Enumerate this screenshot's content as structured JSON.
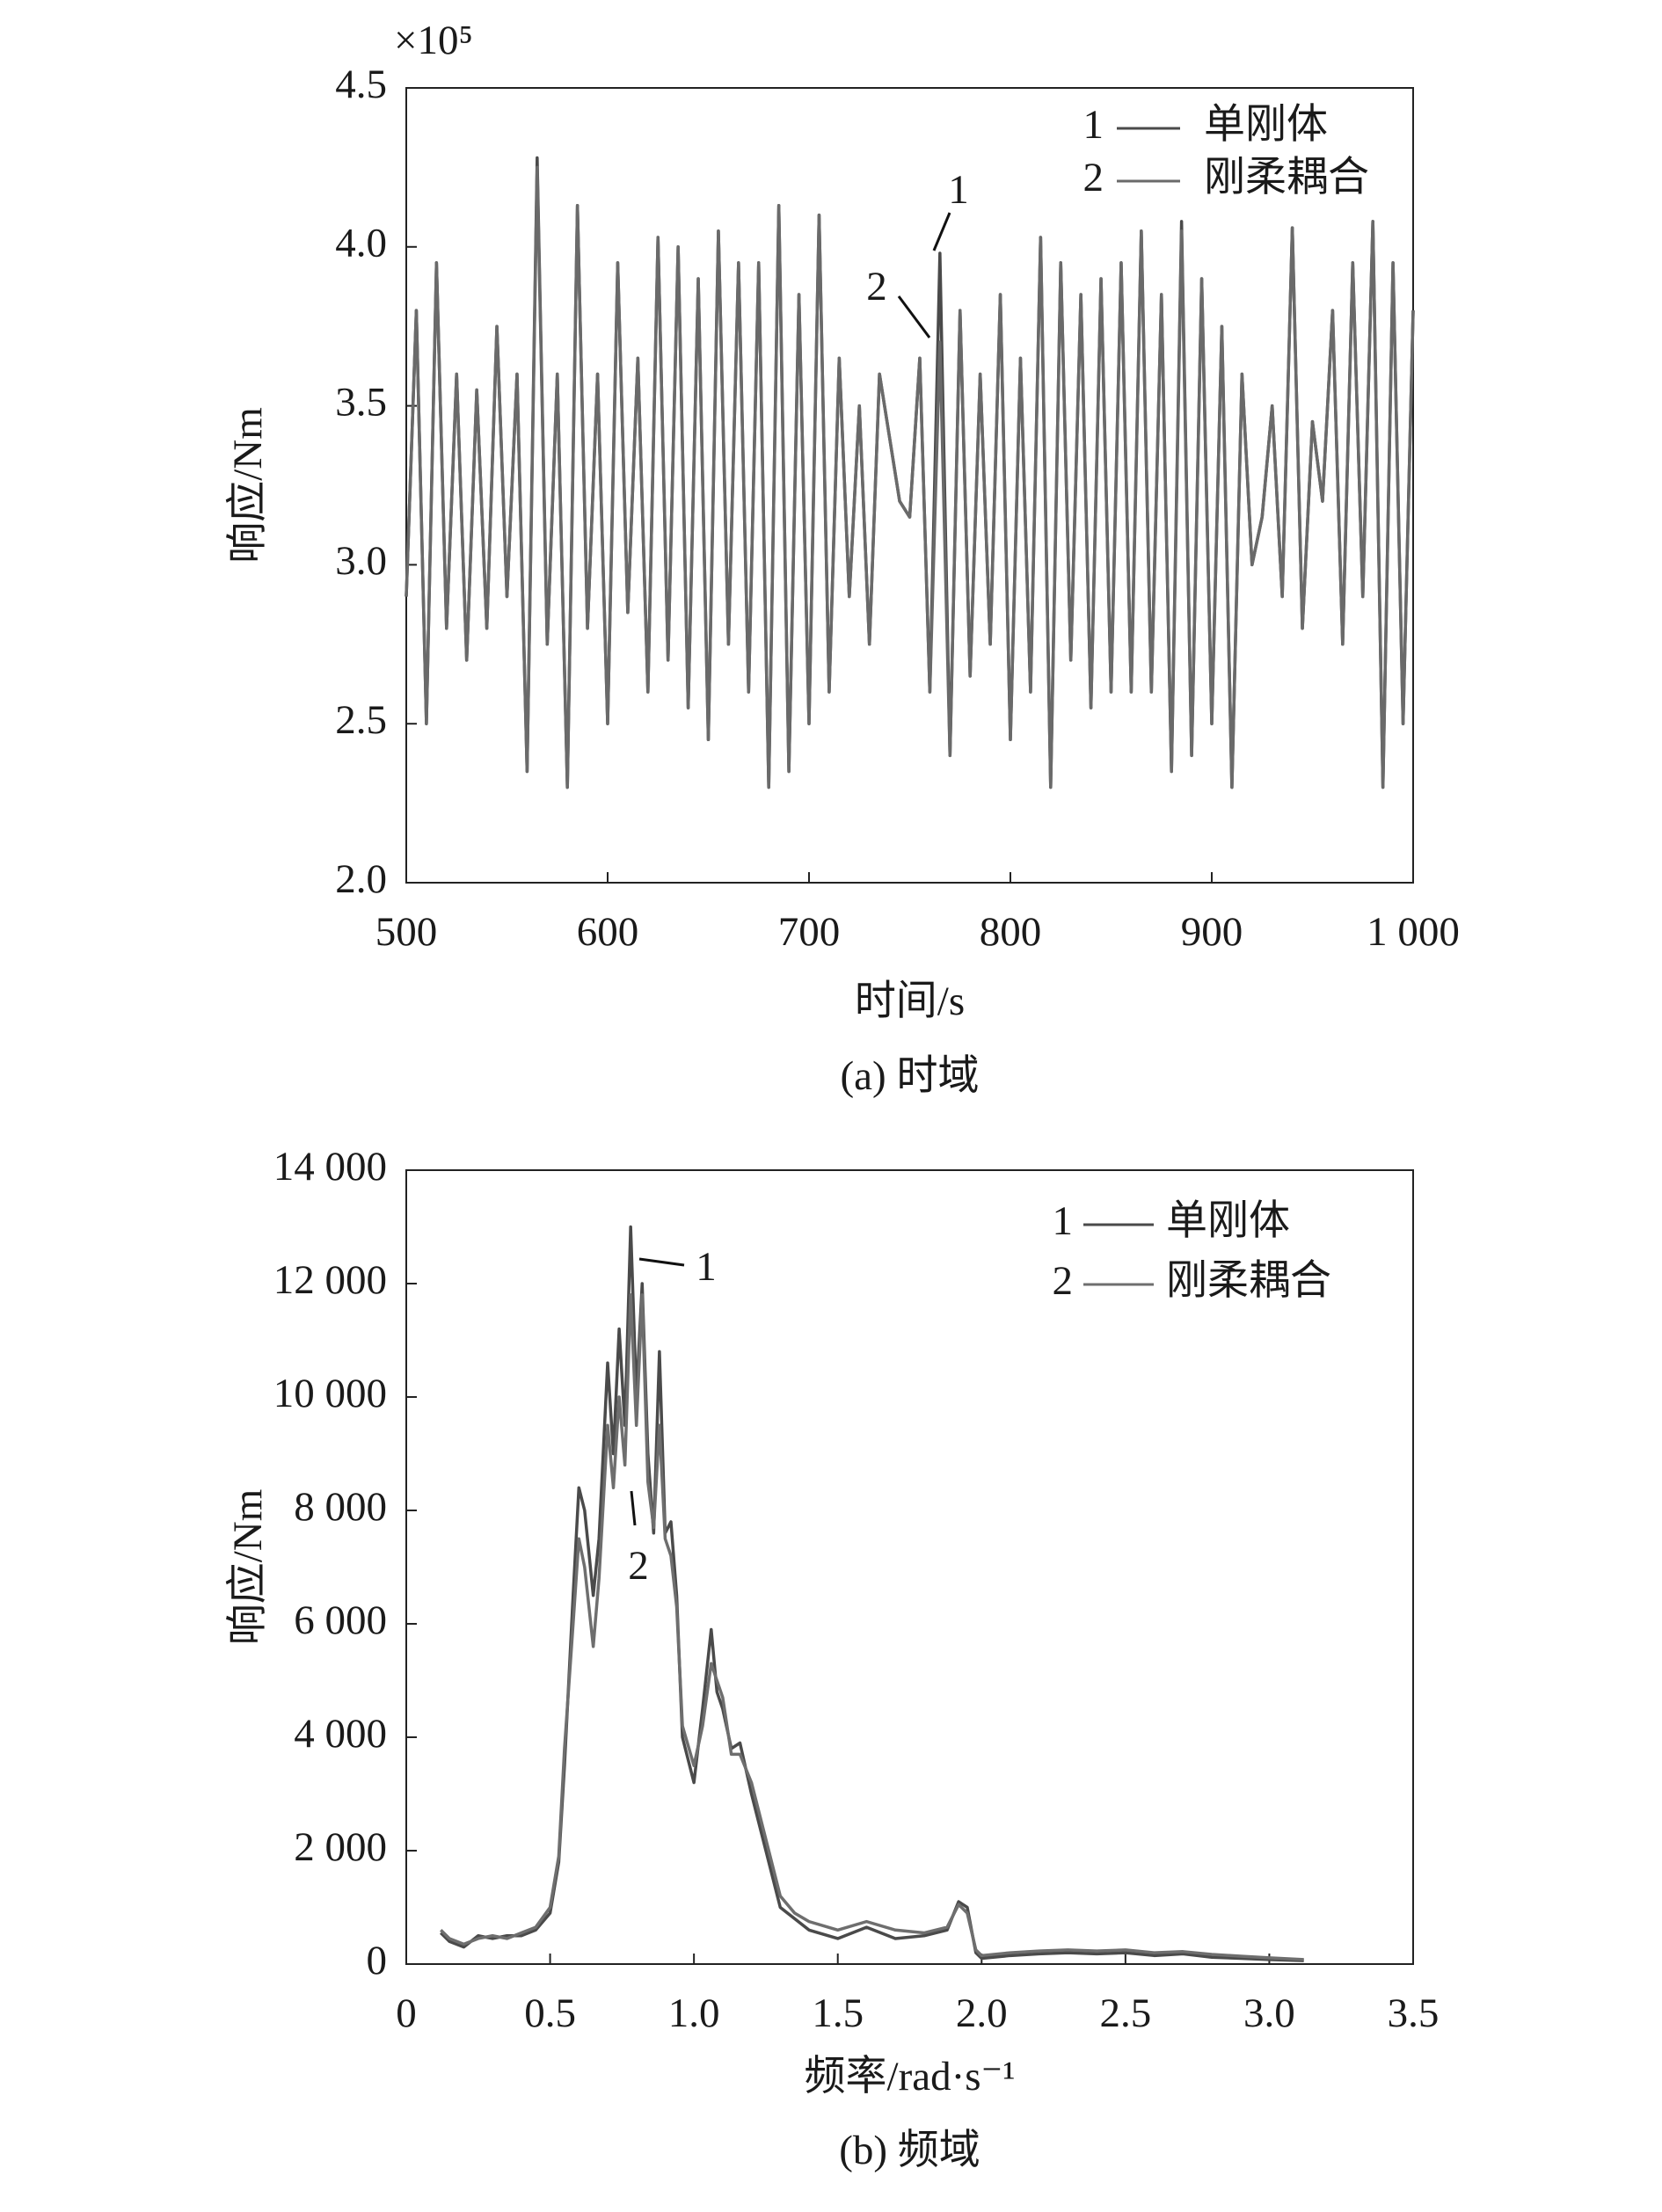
{
  "chart_data": [
    {
      "type": "line",
      "caption": "(a) 时域",
      "x_label": "时间/s",
      "y_label": "响应/Nm",
      "y_multiplier": "×10⁵",
      "xlim": [
        500,
        1000
      ],
      "xticks": [
        500,
        600,
        700,
        800,
        900,
        {
          "value": 1000,
          "label": "1 000"
        }
      ],
      "ylim": [
        2.0,
        4.5
      ],
      "yticks": [
        {
          "value": 2.0,
          "label": "2.0"
        },
        2.5,
        {
          "value": 3.0,
          "label": "3.0"
        },
        3.5,
        {
          "value": 4.0,
          "label": "4.0"
        },
        4.5
      ],
      "legend": "upper right",
      "annotations": [
        "1",
        "2"
      ],
      "x": [
        500,
        505,
        510,
        515,
        520,
        525,
        530,
        535,
        540,
        545,
        550,
        555,
        560,
        565,
        570,
        575,
        580,
        585,
        590,
        595,
        600,
        605,
        610,
        615,
        620,
        625,
        630,
        635,
        640,
        645,
        650,
        655,
        660,
        665,
        670,
        675,
        680,
        685,
        690,
        695,
        700,
        705,
        710,
        715,
        720,
        725,
        730,
        735,
        740,
        745,
        750,
        755,
        760,
        765,
        770,
        775,
        780,
        785,
        790,
        795,
        800,
        805,
        810,
        815,
        820,
        825,
        830,
        835,
        840,
        845,
        850,
        855,
        860,
        865,
        870,
        875,
        880,
        885,
        890,
        895,
        900,
        905,
        910,
        915,
        920,
        925,
        930,
        935,
        940,
        945,
        950,
        955,
        960,
        965,
        970,
        975,
        980,
        985,
        990,
        995,
        1000
      ],
      "series": [
        {
          "name": "单刚体",
          "label": "1",
          "color": "#4a4a4a",
          "values": [
            2.9,
            3.8,
            2.5,
            3.95,
            2.8,
            3.6,
            2.7,
            3.55,
            2.8,
            3.75,
            2.9,
            3.6,
            2.35,
            4.28,
            2.75,
            3.6,
            2.3,
            4.13,
            2.8,
            3.6,
            2.5,
            3.95,
            2.85,
            3.65,
            2.6,
            4.03,
            2.7,
            4.0,
            2.55,
            3.9,
            2.45,
            4.05,
            2.75,
            3.95,
            2.6,
            3.95,
            2.3,
            4.13,
            2.35,
            3.85,
            2.5,
            4.1,
            2.6,
            3.65,
            2.9,
            3.5,
            2.75,
            3.6,
            3.4,
            3.2,
            3.15,
            3.65,
            2.6,
            3.98,
            2.4,
            3.8,
            2.65,
            3.6,
            2.75,
            3.85,
            2.45,
            3.65,
            2.6,
            4.03,
            2.3,
            3.95,
            2.7,
            3.85,
            2.55,
            3.9,
            2.6,
            3.95,
            2.6,
            4.05,
            2.6,
            3.85,
            2.35,
            4.08,
            2.4,
            3.9,
            2.5,
            3.75,
            2.3,
            3.6,
            3.0,
            3.15,
            3.5,
            2.9,
            4.06,
            2.8,
            3.45,
            3.2,
            3.8,
            2.75,
            3.95,
            2.9,
            4.08,
            2.3,
            3.95,
            2.5,
            3.8
          ]
        },
        {
          "name": "刚柔耦合",
          "label": "2",
          "color": "#6a6a6a",
          "values": [
            2.9,
            3.8,
            2.5,
            3.95,
            2.8,
            3.6,
            2.7,
            3.55,
            2.8,
            3.75,
            2.9,
            3.6,
            2.35,
            4.25,
            2.75,
            3.6,
            2.3,
            4.13,
            2.8,
            3.6,
            2.5,
            3.95,
            2.85,
            3.65,
            2.6,
            4.03,
            2.7,
            4.0,
            2.55,
            3.9,
            2.45,
            4.05,
            2.75,
            3.95,
            2.6,
            3.95,
            2.3,
            4.13,
            2.35,
            3.85,
            2.5,
            4.1,
            2.6,
            3.65,
            2.9,
            3.5,
            2.75,
            3.6,
            3.4,
            3.2,
            3.15,
            3.65,
            2.6,
            3.7,
            2.4,
            3.8,
            2.65,
            3.6,
            2.75,
            3.85,
            2.45,
            3.65,
            2.6,
            4.03,
            2.3,
            3.95,
            2.7,
            3.85,
            2.55,
            3.9,
            2.6,
            3.95,
            2.6,
            4.05,
            2.6,
            3.85,
            2.35,
            4.05,
            2.4,
            3.9,
            2.5,
            3.75,
            2.3,
            3.6,
            3.0,
            3.15,
            3.5,
            2.9,
            4.06,
            2.8,
            3.45,
            3.2,
            3.8,
            2.75,
            3.95,
            2.9,
            4.08,
            2.3,
            3.95,
            2.5,
            3.8
          ]
        }
      ]
    },
    {
      "type": "line",
      "caption": "(b) 频域",
      "x_label": "频率/rad·s⁻¹",
      "y_label": "响应/Nm",
      "xlim": [
        0,
        3.5
      ],
      "xticks": [
        0,
        0.5,
        {
          "value": 1.0,
          "label": "1.0"
        },
        1.5,
        {
          "value": 2.0,
          "label": "2.0"
        },
        2.5,
        {
          "value": 3.0,
          "label": "3.0"
        },
        3.5
      ],
      "ylim": [
        0,
        14000
      ],
      "yticks": [
        0,
        {
          "value": 2000,
          "label": "2 000"
        },
        {
          "value": 4000,
          "label": "4 000"
        },
        {
          "value": 6000,
          "label": "6 000"
        },
        {
          "value": 8000,
          "label": "8 000"
        },
        {
          "value": 10000,
          "label": "10 000"
        },
        {
          "value": 12000,
          "label": "12 000"
        },
        {
          "value": 14000,
          "label": "14 000"
        }
      ],
      "legend": "upper right",
      "annotations": [
        "1",
        "2"
      ],
      "x": [
        0.12,
        0.15,
        0.2,
        0.25,
        0.3,
        0.35,
        0.4,
        0.45,
        0.5,
        0.53,
        0.55,
        0.58,
        0.6,
        0.62,
        0.65,
        0.67,
        0.7,
        0.72,
        0.74,
        0.76,
        0.78,
        0.8,
        0.82,
        0.84,
        0.86,
        0.88,
        0.9,
        0.92,
        0.94,
        0.96,
        1.0,
        1.03,
        1.06,
        1.08,
        1.1,
        1.13,
        1.16,
        1.2,
        1.25,
        1.3,
        1.35,
        1.4,
        1.5,
        1.6,
        1.7,
        1.8,
        1.88,
        1.92,
        1.95,
        1.98,
        2.0,
        2.1,
        2.2,
        2.3,
        2.4,
        2.5,
        2.6,
        2.7,
        2.8,
        2.9,
        3.0,
        3.12
      ],
      "series": [
        {
          "name": "单刚体",
          "label": "1",
          "color": "#4a4a4a",
          "values": [
            550,
            400,
            300,
            500,
            450,
            500,
            500,
            600,
            900,
            1800,
            3500,
            6500,
            8400,
            8000,
            6500,
            7500,
            10600,
            9000,
            11200,
            9500,
            13000,
            10000,
            12000,
            9000,
            7600,
            10800,
            7600,
            7800,
            6500,
            4000,
            3200,
            4500,
            5900,
            4800,
            4500,
            3800,
            3900,
            3000,
            2000,
            1000,
            800,
            600,
            450,
            650,
            450,
            500,
            600,
            1100,
            1000,
            200,
            100,
            150,
            180,
            200,
            180,
            200,
            150,
            180,
            120,
            100,
            80,
            60
          ]
        },
        {
          "name": "刚柔耦合",
          "label": "2",
          "color": "#6e6e6e",
          "values": [
            600,
            450,
            350,
            450,
            500,
            450,
            550,
            650,
            1000,
            1900,
            3800,
            6000,
            7500,
            7000,
            5600,
            6800,
            9500,
            8400,
            10000,
            8800,
            11800,
            9500,
            11800,
            8500,
            7700,
            9500,
            7500,
            7200,
            6300,
            4200,
            3500,
            4200,
            5300,
            5000,
            4700,
            3700,
            3700,
            3200,
            2200,
            1200,
            900,
            750,
            600,
            750,
            600,
            550,
            650,
            1050,
            900,
            250,
            150,
            200,
            230,
            250,
            230,
            250,
            200,
            220,
            170,
            140,
            110,
            80
          ]
        }
      ]
    }
  ]
}
